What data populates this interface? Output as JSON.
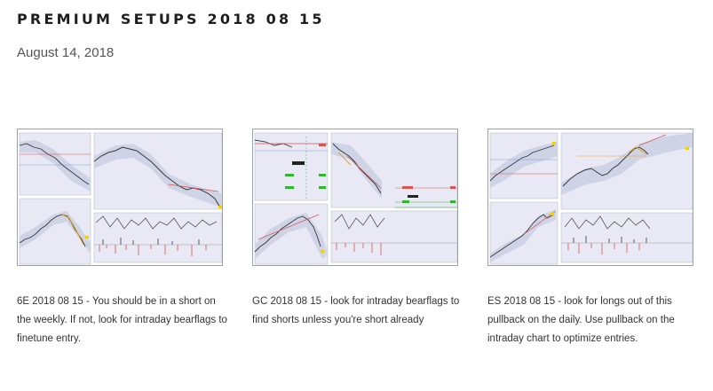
{
  "post": {
    "title": "PREMIUM SETUPS 2018 08 15",
    "date": "August 14, 2018"
  },
  "cards": [
    {
      "caption": "6E 2018 08 15 - You should be in a short on the weekly. If not, look for intraday bearflags to finetune entry.",
      "image_alt": "6E chart screenshot"
    },
    {
      "caption": "GC 2018 08 15 - look for intraday bearflags to find shorts unless you're short already",
      "image_alt": "GC chart screenshot"
    },
    {
      "caption": "ES 2018 08 15 - look for longs out of this pullback on the daily. Use pullback on the intraday chart to optimize entries.",
      "image_alt": "ES chart screenshot"
    }
  ],
  "colors": {
    "chart_bg": "#e8e9f5",
    "band": "#cfd3e6",
    "price": "#3a3a3a",
    "red_line": "#d9534f",
    "green_marker": "#2eb82e",
    "yellow_marker": "#f0d000"
  }
}
